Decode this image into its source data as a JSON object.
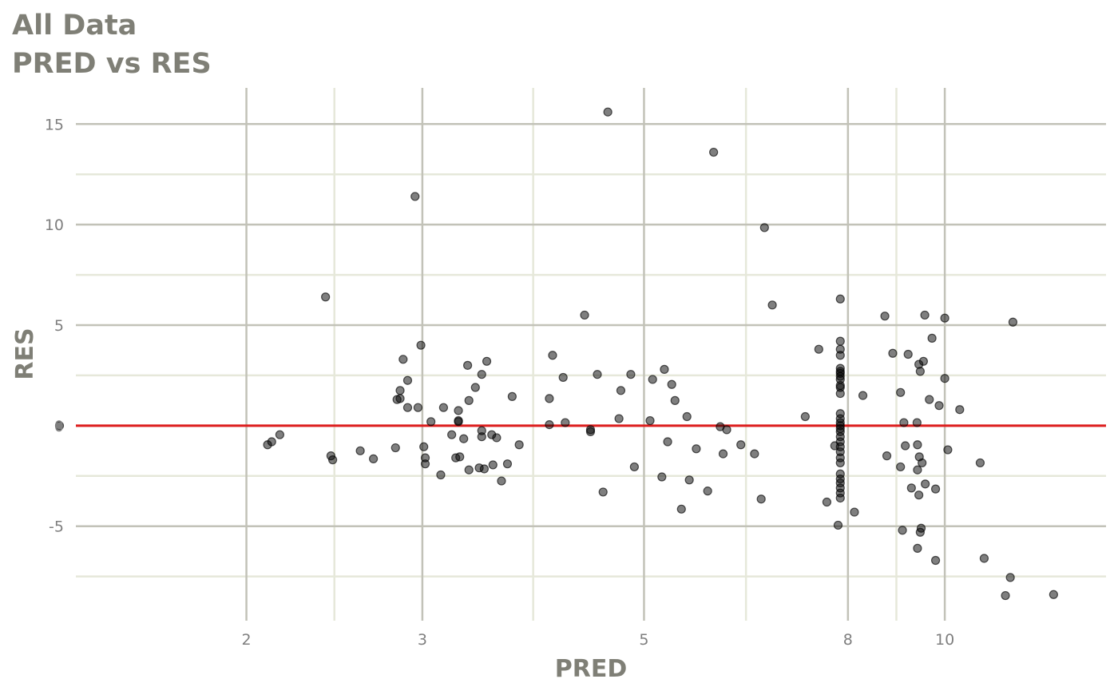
{
  "chart_data": {
    "type": "scatter",
    "title": "All Data",
    "subtitle": "PRED vs RES",
    "xlabel": "PRED",
    "ylabel": "RES",
    "x_scale": "log",
    "x_ticks": [
      2,
      3,
      5,
      8,
      10
    ],
    "x_tick_labels": [
      "2",
      "3",
      "5",
      "8",
      "10"
    ],
    "y_ticks": [
      -5,
      0,
      5,
      10,
      15
    ],
    "y_tick_labels": [
      "-5",
      "0",
      "5",
      "10",
      "15"
    ],
    "xlim": [
      1.35,
      14.5
    ],
    "ylim": [
      -9.7,
      16.8
    ],
    "grid": true,
    "reference_line": {
      "y": 0,
      "color": "#dd1c1c"
    },
    "point_color": "#000000",
    "points": [
      [
        1.3,
        0.0
      ],
      [
        2.1,
        -0.95
      ],
      [
        2.12,
        -0.8
      ],
      [
        2.16,
        -0.45
      ],
      [
        2.4,
        6.4
      ],
      [
        2.43,
        -1.5
      ],
      [
        2.44,
        -1.7
      ],
      [
        2.6,
        -1.25
      ],
      [
        2.68,
        -1.65
      ],
      [
        2.82,
        -1.1
      ],
      [
        2.83,
        1.3
      ],
      [
        2.85,
        1.75
      ],
      [
        2.85,
        1.35
      ],
      [
        2.87,
        3.3
      ],
      [
        2.9,
        2.25
      ],
      [
        2.9,
        0.9
      ],
      [
        2.95,
        11.4
      ],
      [
        2.97,
        0.9
      ],
      [
        2.99,
        4.0
      ],
      [
        3.01,
        -1.05
      ],
      [
        3.02,
        -1.6
      ],
      [
        3.02,
        -1.9
      ],
      [
        3.06,
        0.2
      ],
      [
        3.13,
        -2.45
      ],
      [
        3.15,
        0.9
      ],
      [
        3.21,
        -0.45
      ],
      [
        3.24,
        -1.6
      ],
      [
        3.26,
        0.75
      ],
      [
        3.26,
        0.2
      ],
      [
        3.26,
        0.25
      ],
      [
        3.27,
        -1.55
      ],
      [
        3.3,
        -0.65
      ],
      [
        3.33,
        3.0
      ],
      [
        3.34,
        -2.2
      ],
      [
        3.34,
        1.25
      ],
      [
        3.39,
        1.9
      ],
      [
        3.42,
        -2.1
      ],
      [
        3.44,
        2.55
      ],
      [
        3.44,
        -0.55
      ],
      [
        3.44,
        -0.25
      ],
      [
        3.46,
        -2.15
      ],
      [
        3.48,
        3.2
      ],
      [
        3.52,
        -0.45
      ],
      [
        3.53,
        -1.95
      ],
      [
        3.56,
        -0.6
      ],
      [
        3.6,
        -2.75
      ],
      [
        3.65,
        -1.9
      ],
      [
        3.69,
        1.45
      ],
      [
        3.75,
        -0.95
      ],
      [
        4.02,
        0.05
      ],
      [
        4.02,
        1.35
      ],
      [
        4.05,
        3.5
      ],
      [
        4.15,
        2.4
      ],
      [
        4.17,
        0.15
      ],
      [
        4.36,
        5.5
      ],
      [
        4.42,
        -0.3
      ],
      [
        4.42,
        -0.2
      ],
      [
        4.49,
        2.55
      ],
      [
        4.55,
        -3.3
      ],
      [
        4.6,
        15.6
      ],
      [
        4.72,
        0.35
      ],
      [
        4.74,
        1.75
      ],
      [
        4.85,
        2.55
      ],
      [
        4.89,
        -2.05
      ],
      [
        5.07,
        0.25
      ],
      [
        5.1,
        2.3
      ],
      [
        5.21,
        -2.55
      ],
      [
        5.24,
        2.8
      ],
      [
        5.28,
        -0.8
      ],
      [
        5.33,
        2.05
      ],
      [
        5.37,
        1.25
      ],
      [
        5.45,
        -4.15
      ],
      [
        5.52,
        0.45
      ],
      [
        5.55,
        -2.7
      ],
      [
        5.64,
        -1.15
      ],
      [
        5.79,
        -3.25
      ],
      [
        5.87,
        13.6
      ],
      [
        5.96,
        -0.05
      ],
      [
        6.0,
        -1.4
      ],
      [
        6.05,
        -0.2
      ],
      [
        6.25,
        -0.95
      ],
      [
        6.45,
        -1.4
      ],
      [
        6.55,
        -3.65
      ],
      [
        6.6,
        9.85
      ],
      [
        6.72,
        6.0
      ],
      [
        7.25,
        0.45
      ],
      [
        7.48,
        3.8
      ],
      [
        7.62,
        -3.8
      ],
      [
        7.76,
        -1.0
      ],
      [
        7.82,
        -4.95
      ],
      [
        7.86,
        6.3
      ],
      [
        7.86,
        4.2
      ],
      [
        7.86,
        3.8
      ],
      [
        7.86,
        3.5
      ],
      [
        7.86,
        2.85
      ],
      [
        7.86,
        2.7
      ],
      [
        7.86,
        2.6
      ],
      [
        7.86,
        2.45
      ],
      [
        7.86,
        2.3
      ],
      [
        7.86,
        2.0
      ],
      [
        7.86,
        1.9
      ],
      [
        7.86,
        1.6
      ],
      [
        7.86,
        0.6
      ],
      [
        7.86,
        0.35
      ],
      [
        7.86,
        0.15
      ],
      [
        7.86,
        0.0
      ],
      [
        7.86,
        -0.15
      ],
      [
        7.86,
        -0.3
      ],
      [
        7.86,
        -0.55
      ],
      [
        7.86,
        -0.8
      ],
      [
        7.86,
        -1.05
      ],
      [
        7.86,
        -1.3
      ],
      [
        7.86,
        -1.6
      ],
      [
        7.86,
        -1.85
      ],
      [
        7.86,
        -2.4
      ],
      [
        7.86,
        -2.65
      ],
      [
        7.86,
        -2.85
      ],
      [
        7.86,
        -3.1
      ],
      [
        7.86,
        -3.35
      ],
      [
        7.86,
        -3.6
      ],
      [
        8.12,
        -4.3
      ],
      [
        8.28,
        1.5
      ],
      [
        8.71,
        5.45
      ],
      [
        8.75,
        -1.5
      ],
      [
        8.87,
        3.6
      ],
      [
        9.03,
        1.65
      ],
      [
        9.03,
        -2.05
      ],
      [
        9.07,
        -5.2
      ],
      [
        9.1,
        0.15
      ],
      [
        9.13,
        -1.0
      ],
      [
        9.19,
        3.55
      ],
      [
        9.26,
        -3.1
      ],
      [
        9.38,
        0.15
      ],
      [
        9.39,
        -6.1
      ],
      [
        9.39,
        -0.95
      ],
      [
        9.39,
        -2.2
      ],
      [
        9.42,
        3.05
      ],
      [
        9.42,
        -3.45
      ],
      [
        9.43,
        -1.55
      ],
      [
        9.45,
        -5.3
      ],
      [
        9.45,
        2.7
      ],
      [
        9.47,
        -5.1
      ],
      [
        9.49,
        -1.85
      ],
      [
        9.52,
        3.2
      ],
      [
        9.55,
        5.5
      ],
      [
        9.56,
        -2.9
      ],
      [
        9.65,
        1.3
      ],
      [
        9.71,
        4.35
      ],
      [
        9.79,
        -6.7
      ],
      [
        9.79,
        -3.15
      ],
      [
        9.87,
        1.0
      ],
      [
        10.0,
        2.35
      ],
      [
        10.0,
        5.35
      ],
      [
        10.07,
        -1.2
      ],
      [
        10.35,
        0.8
      ],
      [
        10.85,
        -1.85
      ],
      [
        10.95,
        -6.6
      ],
      [
        11.5,
        -8.45
      ],
      [
        11.63,
        -7.55
      ],
      [
        11.7,
        5.15
      ],
      [
        12.85,
        -8.4
      ]
    ]
  }
}
